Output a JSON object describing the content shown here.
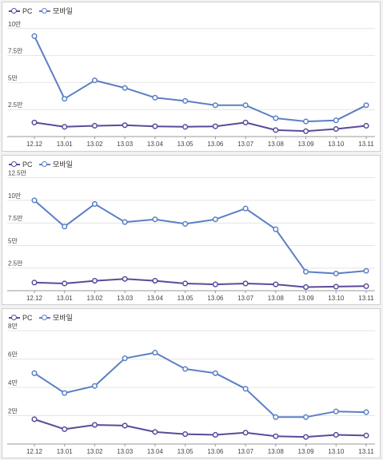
{
  "colors": {
    "pc": "#5c4a9a",
    "mobile": "#5b7fc4",
    "grid": "#e4e4e4",
    "axis": "#999999",
    "text": "#444444"
  },
  "chart_data": [
    {
      "type": "line",
      "categories": [
        "12.12",
        "13.01",
        "13.02",
        "13.03",
        "13.04",
        "13.05",
        "13.06",
        "13.07",
        "13.08",
        "13.09",
        "13.10",
        "13.11"
      ],
      "yticks": [
        {
          "v": 2.5,
          "label": "2.5만"
        },
        {
          "v": 5,
          "label": "5만"
        },
        {
          "v": 7.5,
          "label": "7.5만"
        },
        {
          "v": 10,
          "label": "10만"
        }
      ],
      "ylim": [
        0,
        10.5
      ],
      "legend": [
        "PC",
        "모바일"
      ],
      "series": [
        {
          "name": "PC",
          "values": [
            1.3,
            0.9,
            1.0,
            1.05,
            0.95,
            0.9,
            0.95,
            1.3,
            0.6,
            0.5,
            0.7,
            1.0
          ]
        },
        {
          "name": "모바일",
          "values": [
            9.3,
            3.5,
            5.2,
            4.5,
            3.6,
            3.3,
            2.9,
            2.9,
            1.7,
            1.4,
            1.5,
            2.9
          ]
        }
      ]
    },
    {
      "type": "line",
      "categories": [
        "12.12",
        "13.01",
        "13.02",
        "13.03",
        "13.04",
        "13.05",
        "13.06",
        "13.07",
        "13.08",
        "13.09",
        "13.10",
        "13.11"
      ],
      "yticks": [
        {
          "v": 2.5,
          "label": "2.5만"
        },
        {
          "v": 5,
          "label": "5만"
        },
        {
          "v": 7.5,
          "label": "7.5만"
        },
        {
          "v": 10,
          "label": "10만"
        },
        {
          "v": 12.5,
          "label": "12.5만"
        }
      ],
      "ylim": [
        0,
        13
      ],
      "legend": [
        "PC",
        "모바일"
      ],
      "series": [
        {
          "name": "PC",
          "values": [
            0.9,
            0.8,
            1.1,
            1.3,
            1.1,
            0.8,
            0.7,
            0.8,
            0.7,
            0.4,
            0.45,
            0.5
          ]
        },
        {
          "name": "모바일",
          "values": [
            10.0,
            7.1,
            9.6,
            7.6,
            7.9,
            7.4,
            7.9,
            9.1,
            6.8,
            2.1,
            1.9,
            2.2
          ]
        }
      ]
    },
    {
      "type": "line",
      "categories": [
        "12.12",
        "13.01",
        "13.02",
        "13.03",
        "13.04",
        "13.05",
        "13.06",
        "13.07",
        "13.08",
        "13.09",
        "13.10",
        "13.11"
      ],
      "yticks": [
        {
          "v": 2,
          "label": "2만"
        },
        {
          "v": 4,
          "label": "4만"
        },
        {
          "v": 6,
          "label": "6만"
        },
        {
          "v": 8,
          "label": "8만"
        }
      ],
      "ylim": [
        0,
        8.4
      ],
      "legend": [
        "PC",
        "모바일"
      ],
      "series": [
        {
          "name": "PC",
          "values": [
            1.75,
            1.05,
            1.35,
            1.3,
            0.85,
            0.7,
            0.65,
            0.8,
            0.55,
            0.5,
            0.65,
            0.6
          ]
        },
        {
          "name": "모바일",
          "values": [
            5.0,
            3.6,
            4.1,
            6.05,
            6.45,
            5.3,
            5.0,
            3.9,
            1.9,
            1.9,
            2.3,
            2.25
          ]
        }
      ]
    }
  ]
}
